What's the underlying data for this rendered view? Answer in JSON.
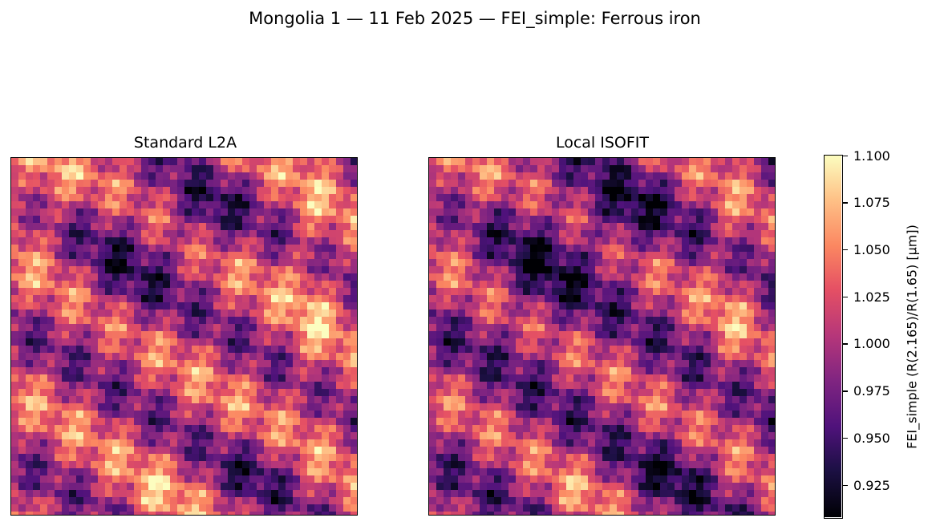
{
  "figure": {
    "title": "Mongolia 1 — 11 Feb 2025 — FEI_simple: Ferrous iron"
  },
  "chart_data": {
    "type": "heatmap",
    "title": "Mongolia 1 — 11 Feb 2025 — FEI_simple: Ferrous iron",
    "colormap": "magma",
    "panels": [
      {
        "title": "Standard L2A",
        "axes_visible": false
      },
      {
        "title": "Local ISOFIT",
        "axes_visible": false
      }
    ],
    "colorbar": {
      "label": "FEI_simple  (R(2.165)/R(1.65)  [µm])",
      "range": [
        0.908,
        1.1
      ],
      "ticks": [
        "0.925",
        "0.950",
        "0.975",
        "1.000",
        "1.025",
        "1.050",
        "1.075",
        "1.100"
      ]
    },
    "grid": false
  }
}
